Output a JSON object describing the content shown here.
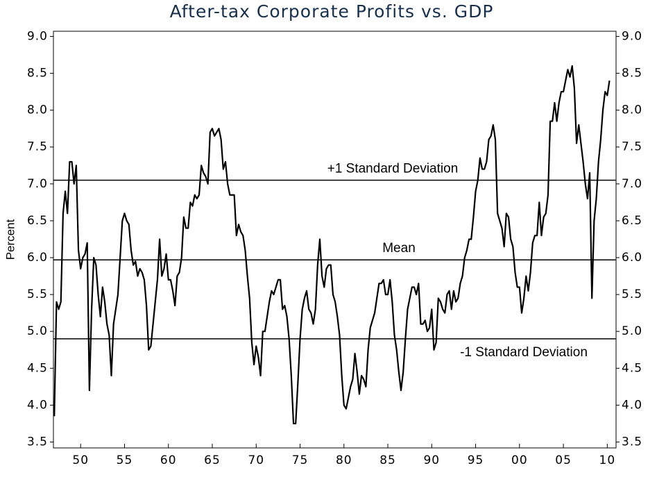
{
  "chart_data": {
    "type": "line",
    "title": "After-tax Corporate Profits vs. GDP",
    "ylabel": "Percent",
    "xlim": [
      1946.9,
      2011
    ],
    "ylim": [
      3.42,
      9.07
    ],
    "y2lim": [
      3.42,
      9.07
    ],
    "xticks": [
      {
        "value": 1950,
        "label": "50"
      },
      {
        "value": 1955,
        "label": "55"
      },
      {
        "value": 1960,
        "label": "60"
      },
      {
        "value": 1965,
        "label": "65"
      },
      {
        "value": 1970,
        "label": "70"
      },
      {
        "value": 1975,
        "label": "75"
      },
      {
        "value": 1980,
        "label": "80"
      },
      {
        "value": 1985,
        "label": "85"
      },
      {
        "value": 1990,
        "label": "90"
      },
      {
        "value": 1995,
        "label": "95"
      },
      {
        "value": 2000,
        "label": "00"
      },
      {
        "value": 2005,
        "label": "05"
      },
      {
        "value": 2010,
        "label": "10"
      }
    ],
    "yticks": [
      3.5,
      {
        "value": 4,
        "label": "4.0"
      },
      4.5,
      {
        "value": 5,
        "label": "5.0"
      },
      5.5,
      {
        "value": 6,
        "label": "6.0"
      },
      6.5,
      {
        "value": 7,
        "label": "7.0"
      },
      7.5,
      {
        "value": 8,
        "label": "8.0"
      },
      8.5,
      {
        "value": 9,
        "label": "9.0"
      }
    ],
    "reference_lines": [
      {
        "value": 7.05,
        "label": "+1 Standard Deviation"
      },
      {
        "value": 5.97,
        "label": "Mean"
      },
      {
        "value": 4.9,
        "label": "-1 Standard Deviation"
      }
    ],
    "x": [
      1947,
      1947.25,
      1947.5,
      1947.75,
      1948,
      1948.25,
      1948.5,
      1948.75,
      1949,
      1949.25,
      1949.5,
      1949.75,
      1950,
      1950.25,
      1950.5,
      1950.75,
      1951,
      1951.25,
      1951.5,
      1951.75,
      1952,
      1952.25,
      1952.5,
      1952.75,
      1953,
      1953.25,
      1953.5,
      1953.75,
      1954,
      1954.25,
      1954.5,
      1954.75,
      1955,
      1955.25,
      1955.5,
      1955.75,
      1956,
      1956.25,
      1956.5,
      1956.75,
      1957,
      1957.25,
      1957.5,
      1957.75,
      1958,
      1958.25,
      1958.5,
      1958.75,
      1959,
      1959.25,
      1959.5,
      1959.75,
      1960,
      1960.25,
      1960.5,
      1960.75,
      1961,
      1961.25,
      1961.5,
      1961.75,
      1962,
      1962.25,
      1962.5,
      1962.75,
      1963,
      1963.25,
      1963.5,
      1963.75,
      1964,
      1964.25,
      1964.5,
      1964.75,
      1965,
      1965.25,
      1965.5,
      1965.75,
      1966,
      1966.25,
      1966.5,
      1966.75,
      1967,
      1967.25,
      1967.5,
      1967.75,
      1968,
      1968.25,
      1968.5,
      1968.75,
      1969,
      1969.25,
      1969.5,
      1969.75,
      1970,
      1970.25,
      1970.5,
      1970.75,
      1971,
      1971.25,
      1971.5,
      1971.75,
      1972,
      1972.25,
      1972.5,
      1972.75,
      1973,
      1973.25,
      1973.5,
      1973.75,
      1974,
      1974.25,
      1974.5,
      1974.75,
      1975,
      1975.25,
      1975.5,
      1975.75,
      1976,
      1976.25,
      1976.5,
      1976.75,
      1977,
      1977.25,
      1977.5,
      1977.75,
      1978,
      1978.25,
      1978.5,
      1978.75,
      1979,
      1979.25,
      1979.5,
      1979.75,
      1980,
      1980.25,
      1980.5,
      1980.75,
      1981,
      1981.25,
      1981.5,
      1981.75,
      1982,
      1982.25,
      1982.5,
      1982.75,
      1983,
      1983.25,
      1983.5,
      1983.75,
      1984,
      1984.25,
      1984.5,
      1984.75,
      1985,
      1985.25,
      1985.5,
      1985.75,
      1986,
      1986.25,
      1986.5,
      1986.75,
      1987,
      1987.25,
      1987.5,
      1987.75,
      1988,
      1988.25,
      1988.5,
      1988.75,
      1989,
      1989.25,
      1989.5,
      1989.75,
      1990,
      1990.25,
      1990.5,
      1990.75,
      1991,
      1991.25,
      1991.5,
      1991.75,
      1992,
      1992.25,
      1992.5,
      1992.75,
      1993,
      1993.25,
      1993.5,
      1993.75,
      1994,
      1994.25,
      1994.5,
      1994.75,
      1995,
      1995.25,
      1995.5,
      1995.75,
      1996,
      1996.25,
      1996.5,
      1996.75,
      1997,
      1997.25,
      1997.5,
      1997.75,
      1998,
      1998.25,
      1998.5,
      1998.75,
      1999,
      1999.25,
      1999.5,
      1999.75,
      2000,
      2000.25,
      2000.5,
      2000.75,
      2001,
      2001.25,
      2001.5,
      2001.75,
      2002,
      2002.25,
      2002.5,
      2002.75,
      2003,
      2003.25,
      2003.5,
      2003.75,
      2004,
      2004.25,
      2004.5,
      2004.75,
      2005,
      2005.25,
      2005.5,
      2005.75,
      2006,
      2006.25,
      2006.5,
      2006.75,
      2007,
      2007.25,
      2007.5,
      2007.75,
      2008,
      2008.25,
      2008.5,
      2008.75,
      2009,
      2009.25,
      2009.5,
      2009.75,
      2010,
      2010.25
    ],
    "series": [
      {
        "color": "#000000",
        "values": [
          3.85,
          5.4,
          5.3,
          5.4,
          6.6,
          6.9,
          6.6,
          7.3,
          7.3,
          7.0,
          7.25,
          6.1,
          5.85,
          6.0,
          6.05,
          6.2,
          4.2,
          5.3,
          6.0,
          5.9,
          5.5,
          5.2,
          5.6,
          5.4,
          5.1,
          4.95,
          4.4,
          5.1,
          5.3,
          5.5,
          6.0,
          6.5,
          6.6,
          6.5,
          6.45,
          6.1,
          5.9,
          5.95,
          5.75,
          5.85,
          5.8,
          5.7,
          5.35,
          4.75,
          4.8,
          5.1,
          5.4,
          5.7,
          6.25,
          5.75,
          5.85,
          6.05,
          5.7,
          5.7,
          5.55,
          5.35,
          5.75,
          5.8,
          6.0,
          6.55,
          6.4,
          6.4,
          6.75,
          6.7,
          6.85,
          6.8,
          6.85,
          7.25,
          7.15,
          7.1,
          7.0,
          7.7,
          7.75,
          7.65,
          7.7,
          7.75,
          7.6,
          7.2,
          7.3,
          7.0,
          6.85,
          6.85,
          6.85,
          6.3,
          6.45,
          6.35,
          6.3,
          6.1,
          5.75,
          5.45,
          4.85,
          4.55,
          4.8,
          4.65,
          4.4,
          5.0,
          5.0,
          5.2,
          5.4,
          5.55,
          5.5,
          5.6,
          5.7,
          5.7,
          5.3,
          5.35,
          5.2,
          4.9,
          4.4,
          3.75,
          3.75,
          4.3,
          4.9,
          5.3,
          5.45,
          5.55,
          5.3,
          5.25,
          5.1,
          5.3,
          5.9,
          6.25,
          5.75,
          5.6,
          5.85,
          5.9,
          5.9,
          5.5,
          5.4,
          5.2,
          4.95,
          4.4,
          4.0,
          3.95,
          4.1,
          4.25,
          4.35,
          4.7,
          4.45,
          4.15,
          4.4,
          4.35,
          4.25,
          4.75,
          5.05,
          5.15,
          5.25,
          5.45,
          5.65,
          5.65,
          5.7,
          5.5,
          5.5,
          5.7,
          5.4,
          4.95,
          4.75,
          4.45,
          4.2,
          4.45,
          4.9,
          5.3,
          5.45,
          5.6,
          5.6,
          5.5,
          5.65,
          5.1,
          5.1,
          5.15,
          5.0,
          5.05,
          5.3,
          4.75,
          4.85,
          5.45,
          5.4,
          5.3,
          5.25,
          5.5,
          5.55,
          5.3,
          5.55,
          5.4,
          5.45,
          5.65,
          5.75,
          6.0,
          6.1,
          6.25,
          6.25,
          6.55,
          6.9,
          7.05,
          7.35,
          7.2,
          7.2,
          7.3,
          7.6,
          7.65,
          7.8,
          7.6,
          6.6,
          6.5,
          6.4,
          6.15,
          6.6,
          6.55,
          6.25,
          6.15,
          5.8,
          5.6,
          5.6,
          5.25,
          5.45,
          5.75,
          5.55,
          5.8,
          6.2,
          6.3,
          6.3,
          6.75,
          6.3,
          6.55,
          6.6,
          6.85,
          7.85,
          7.85,
          8.1,
          7.85,
          8.1,
          8.25,
          8.25,
          8.4,
          8.55,
          8.45,
          8.6,
          8.3,
          7.55,
          7.8,
          7.55,
          7.3,
          7.0,
          6.8,
          7.15,
          5.45,
          6.5,
          6.8,
          7.3,
          7.6,
          8.0,
          8.25,
          8.2,
          8.4
        ]
      }
    ]
  }
}
